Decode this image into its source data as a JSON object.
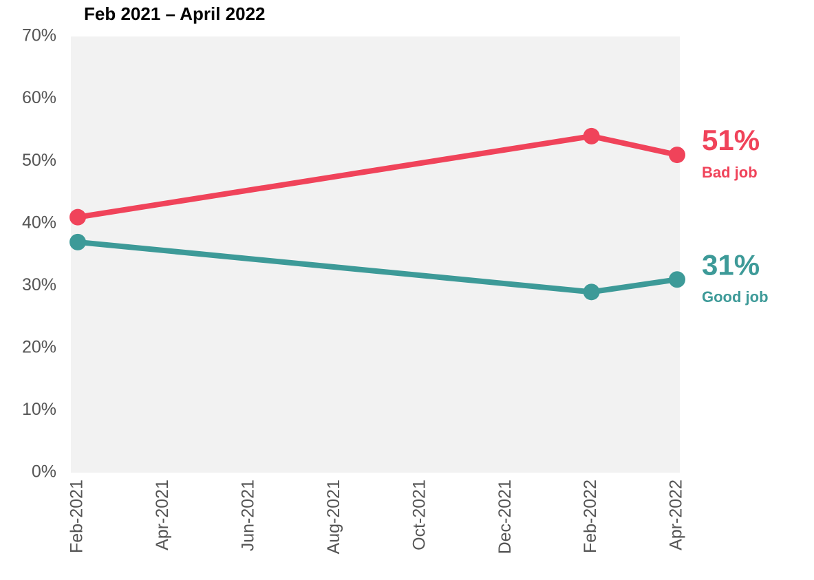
{
  "chart_data": {
    "type": "line",
    "title": "Feb 2021 – April 2022",
    "x": [
      "2021-02",
      "2022-02",
      "2022-04"
    ],
    "xlim": [
      "2021-02",
      "2022-04"
    ],
    "xticks": [
      {
        "value": "2021-02",
        "label": "Feb-2021"
      },
      {
        "value": "2021-04",
        "label": "Apr-2021"
      },
      {
        "value": "2021-06",
        "label": "Jun-2021"
      },
      {
        "value": "2021-08",
        "label": "Aug-2021"
      },
      {
        "value": "2021-10",
        "label": "Oct-2021"
      },
      {
        "value": "2021-12",
        "label": "Dec-2021"
      },
      {
        "value": "2022-02",
        "label": "Feb-2022"
      },
      {
        "value": "2022-04",
        "label": "Apr-2022"
      }
    ],
    "ylim": [
      0,
      70
    ],
    "yticks": [
      {
        "value": 0,
        "label": "0%"
      },
      {
        "value": 10,
        "label": "10%"
      },
      {
        "value": 20,
        "label": "20%"
      },
      {
        "value": 30,
        "label": "30%"
      },
      {
        "value": 40,
        "label": "40%"
      },
      {
        "value": 50,
        "label": "50%"
      },
      {
        "value": 60,
        "label": "60%"
      },
      {
        "value": 70,
        "label": "70%"
      }
    ],
    "series": [
      {
        "name": "Bad job",
        "color": "#f0435a",
        "values": [
          41,
          54,
          51
        ],
        "value_labels": [
          null,
          null,
          "51%"
        ]
      },
      {
        "name": "Good job",
        "color": "#3d9a98",
        "values": [
          37,
          29,
          31
        ],
        "value_labels": [
          null,
          null,
          "31%"
        ]
      }
    ],
    "plot_background": "#f2f2f2"
  }
}
